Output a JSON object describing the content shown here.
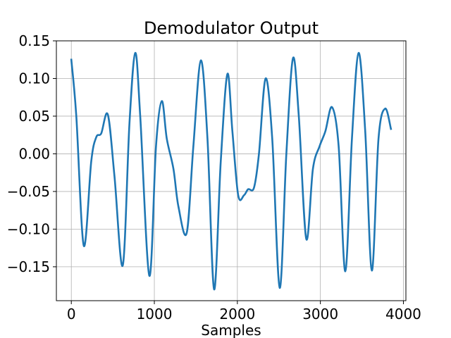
{
  "chart_data": {
    "type": "line",
    "title": "Demodulator Output",
    "xlabel": "Samples",
    "ylabel": "",
    "xlim": [
      -180,
      4030
    ],
    "ylim": [
      -0.195,
      0.15
    ],
    "xticks": [
      0,
      1000,
      2000,
      3000,
      4000
    ],
    "xtick_labels": [
      "0",
      "1000",
      "2000",
      "3000",
      "4000"
    ],
    "yticks": [
      -0.15,
      -0.1,
      -0.05,
      0.0,
      0.05,
      0.1,
      0.15
    ],
    "ytick_labels": [
      "−0.15",
      "−0.10",
      "−0.05",
      "0.00",
      "0.05",
      "0.10",
      "0.15"
    ],
    "grid": true,
    "series": [
      {
        "color": "#1f77b4",
        "x": [
          0,
          60,
          150,
          240,
          300,
          360,
          440,
          520,
          620,
          700,
          770,
          830,
          940,
          1020,
          1090,
          1150,
          1230,
          1290,
          1390,
          1470,
          1560,
          1640,
          1720,
          1800,
          1880,
          1940,
          2010,
          2080,
          2130,
          2200,
          2260,
          2340,
          2420,
          2510,
          2590,
          2670,
          2740,
          2830,
          2910,
          2990,
          3060,
          3140,
          3220,
          3300,
          3380,
          3460,
          3540,
          3620,
          3700,
          3780,
          3850
        ],
        "y": [
          0.125,
          0.05,
          -0.122,
          -0.01,
          0.022,
          0.027,
          0.052,
          -0.03,
          -0.148,
          0.04,
          0.134,
          0.05,
          -0.162,
          0.01,
          0.07,
          0.02,
          -0.02,
          -0.07,
          -0.105,
          0.01,
          0.124,
          0.02,
          -0.18,
          -0.01,
          0.106,
          0.03,
          -0.055,
          -0.055,
          -0.047,
          -0.045,
          0.0,
          0.1,
          0.02,
          -0.178,
          0.0,
          0.127,
          0.05,
          -0.113,
          -0.02,
          0.01,
          0.03,
          0.062,
          0.01,
          -0.156,
          0.02,
          0.134,
          0.03,
          -0.155,
          0.02,
          0.06,
          0.033
        ]
      }
    ]
  }
}
